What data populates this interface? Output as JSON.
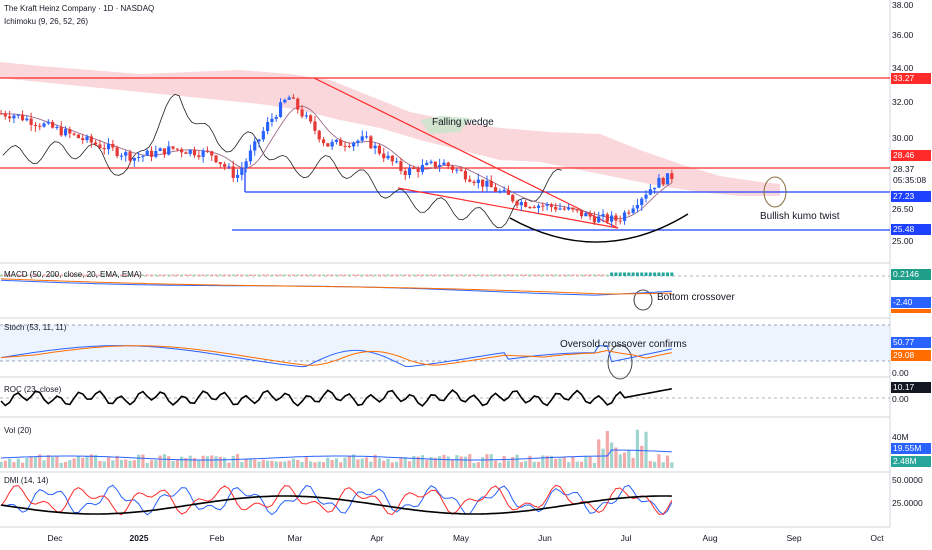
{
  "header": {
    "symbol": "The Kraft Heinz Company · 1D · NASDAQ",
    "indicator": "Ichimoku (9, 26, 52, 26)"
  },
  "colors": {
    "up": "#2962ff",
    "down": "#e53935",
    "cloud_bear": "#f8c9cf",
    "cloud_bull": "#c8e6c9",
    "resistance": "#ff0000",
    "support": "#1e40ff"
  },
  "annotations": {
    "falling_wedge": "Falling wedge",
    "bullish_kumo_twist": "Bullish kumo twist",
    "bottom_crossover": "Bottom crossover",
    "oversold_crossover": "Oversold crossover confirms"
  },
  "panes": {
    "macd": {
      "label": "MACD (50, 200, close, 20, EMA, EMA)",
      "value1": "0.2146",
      "value2": "-2.40"
    },
    "stoch": {
      "label": "Stoch (53, 11, 11)",
      "value1": "50.77",
      "value2": "29.08",
      "zero": "0.00"
    },
    "roc": {
      "label": "ROC (23, close)",
      "value": "10.17",
      "zero": "0.00"
    },
    "vol": {
      "label": "Vol (20)",
      "axis": "40M",
      "value1": "19.55M",
      "value2": "2.48M"
    },
    "dmi": {
      "label": "DMI (14, 14)",
      "axis1": "50.0000",
      "axis2": "25.0000"
    }
  },
  "price_axis": [
    "38.00",
    "36.00",
    "34.00",
    "32.00",
    "30.00",
    "26.50",
    "25.00"
  ],
  "price_tags": {
    "r1": "33.27",
    "r2": "28.46",
    "last": "28.37",
    "countdown": "05:35:08",
    "s1": "27.23",
    "s2": "25.48"
  },
  "x_axis": [
    "Dec",
    "2025",
    "Feb",
    "Mar",
    "Apr",
    "May",
    "Jun",
    "Jul",
    "Aug",
    "Sep",
    "Oct"
  ],
  "chart_data": {
    "type": "candlestick",
    "title": "The Kraft Heinz Company · 1D · NASDAQ",
    "xlabel": "",
    "ylabel": "",
    "ylim": [
      25.0,
      38.0
    ],
    "x_range": [
      "2024-11-20",
      "2025-10-10"
    ],
    "levels": {
      "resistance_1": 33.27,
      "resistance_2": 28.46,
      "support_1": 27.23,
      "support_2": 25.48,
      "last_price": 28.37
    },
    "closes_approx": [
      {
        "date": "2024-11-25",
        "close": 31.8
      },
      {
        "date": "2024-12-10",
        "close": 31.0
      },
      {
        "date": "2024-12-24",
        "close": 30.2
      },
      {
        "date": "2025-01-08",
        "close": 29.4
      },
      {
        "date": "2025-01-22",
        "close": 29.9
      },
      {
        "date": "2025-02-05",
        "close": 29.6
      },
      {
        "date": "2025-02-14",
        "close": 28.3
      },
      {
        "date": "2025-02-26",
        "close": 31.4
      },
      {
        "date": "2025-03-05",
        "close": 32.8
      },
      {
        "date": "2025-03-19",
        "close": 30.1
      },
      {
        "date": "2025-04-02",
        "close": 30.4
      },
      {
        "date": "2025-04-16",
        "close": 28.6
      },
      {
        "date": "2025-04-30",
        "close": 29.1
      },
      {
        "date": "2025-05-14",
        "close": 28.0
      },
      {
        "date": "2025-05-28",
        "close": 26.9
      },
      {
        "date": "2025-06-11",
        "close": 26.6
      },
      {
        "date": "2025-06-25",
        "close": 26.0
      },
      {
        "date": "2025-07-03",
        "close": 25.9
      },
      {
        "date": "2025-07-10",
        "close": 27.0
      },
      {
        "date": "2025-07-17",
        "close": 28.0
      },
      {
        "date": "2025-07-23",
        "close": 28.37
      }
    ]
  }
}
